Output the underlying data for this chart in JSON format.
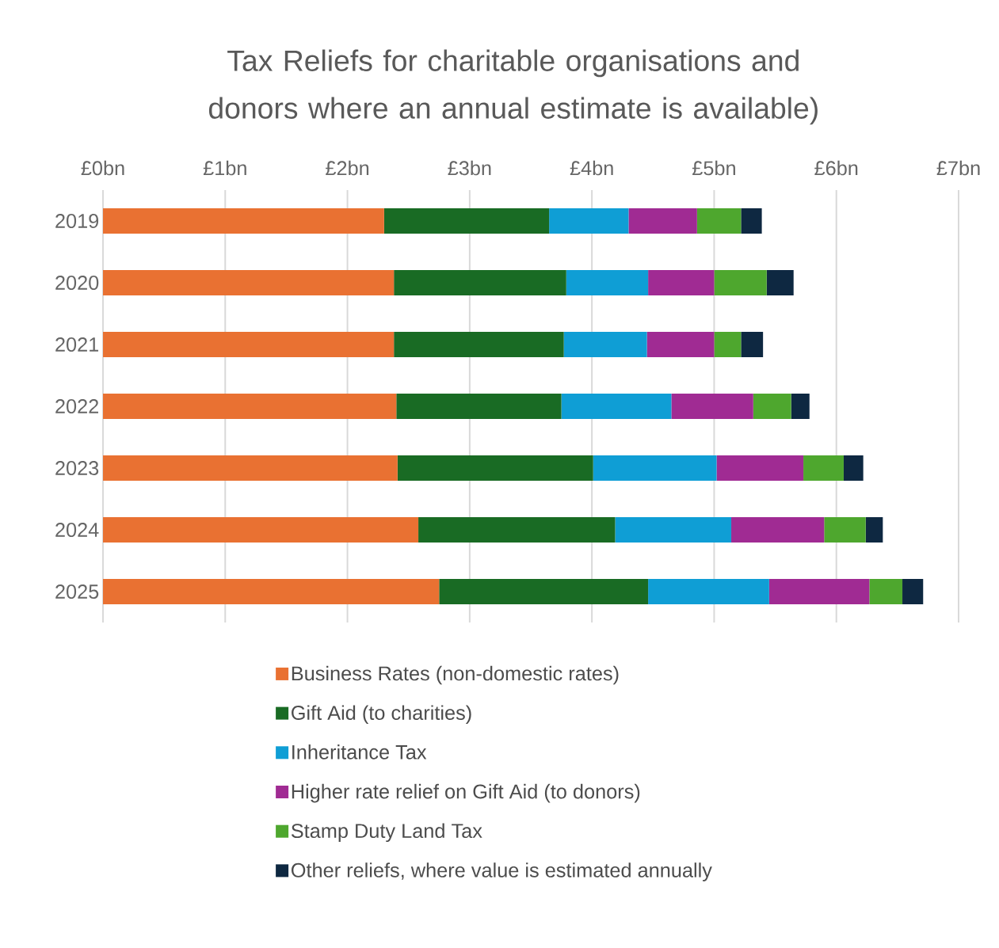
{
  "chart_data": {
    "type": "bar",
    "orientation": "horizontal",
    "stacked": true,
    "title": "Tax Reliefs for charitable organisations and donors where an annual estimate is available)",
    "categories": [
      "2019",
      "2020",
      "2021",
      "2022",
      "2023",
      "2024",
      "2025"
    ],
    "series": [
      {
        "name": "Business Rates (non-domestic rates)",
        "color": "#e97132",
        "values": [
          2.3,
          2.38,
          2.38,
          2.4,
          2.41,
          2.58,
          2.75
        ]
      },
      {
        "name": "Gift Aid (to charities)",
        "color": "#196b24",
        "values": [
          1.35,
          1.41,
          1.39,
          1.35,
          1.6,
          1.61,
          1.71
        ]
      },
      {
        "name": "Inheritance Tax",
        "color": "#0f9ed5",
        "values": [
          0.65,
          0.67,
          0.68,
          0.9,
          1.01,
          0.95,
          0.99
        ]
      },
      {
        "name": "Higher rate relief on Gift Aid (to donors)",
        "color": "#a02b93",
        "values": [
          0.56,
          0.54,
          0.55,
          0.67,
          0.71,
          0.76,
          0.82
        ]
      },
      {
        "name": "Stamp Duty Land Tax",
        "color": "#4ea72e",
        "values": [
          0.36,
          0.43,
          0.22,
          0.31,
          0.33,
          0.34,
          0.27
        ]
      },
      {
        "name": "Other reliefs, where value is estimated annually",
        "color": "#0e2841",
        "values": [
          0.17,
          0.22,
          0.18,
          0.15,
          0.16,
          0.14,
          0.17
        ]
      }
    ],
    "xlim": [
      0,
      7
    ],
    "xticks": [
      {
        "value": 0,
        "label": "£0bn"
      },
      {
        "value": 1,
        "label": "£1bn"
      },
      {
        "value": 2,
        "label": "£2bn"
      },
      {
        "value": 3,
        "label": "£3bn"
      },
      {
        "value": 4,
        "label": "£4bn"
      },
      {
        "value": 5,
        "label": "£5bn"
      },
      {
        "value": 6,
        "label": "£6bn"
      },
      {
        "value": 7,
        "label": "£7bn"
      }
    ],
    "grid": "x",
    "legend": "bottom"
  }
}
